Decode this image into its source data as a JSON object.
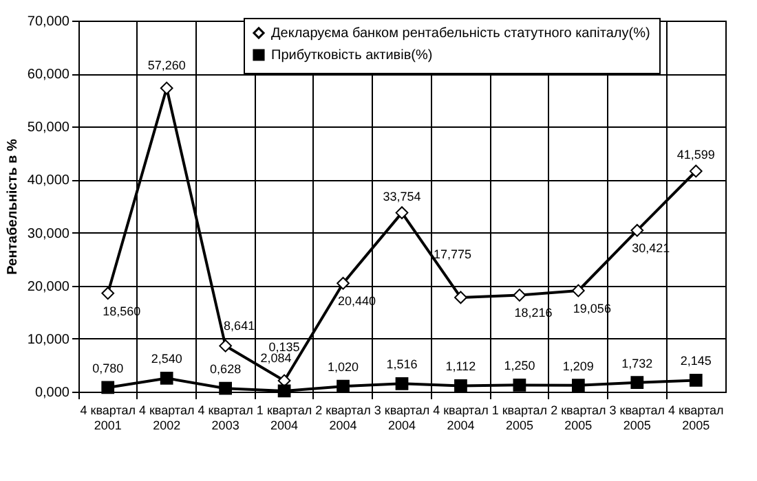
{
  "chart_data": {
    "type": "line",
    "ylabel": "Рентабельність в %",
    "categories": [
      "4 квартал\n2001",
      "4 квартал\n2002",
      "4 квартал\n2003",
      "1 квартал\n2004",
      "2 квартал\n2004",
      "3 квартал\n2004",
      "4 квартал\n2004",
      "1 квартал\n2005",
      "2 квартал\n2005",
      "3 квартал\n2005",
      "4 квартал\n2005"
    ],
    "series": [
      {
        "name": "Декларуєма банком рентабельність статутного капіталу(%)",
        "color": "#000000",
        "marker": "diamond",
        "values": [
          18.56,
          57.26,
          8.641,
          2.084,
          20.44,
          33.754,
          17.775,
          18.216,
          19.056,
          30.421,
          41.599
        ],
        "value_labels": [
          "18,560",
          "57,260",
          "8,641",
          "2,084",
          "20,440",
          "33,754",
          "17,775",
          "18,216",
          "19,056",
          "30,421",
          "41,599"
        ]
      },
      {
        "name": "Прибутковість  активів(%)",
        "color": "#000000",
        "marker": "square",
        "values": [
          0.78,
          2.54,
          0.628,
          0.135,
          1.02,
          1.516,
          1.112,
          1.25,
          1.209,
          1.732,
          2.145
        ],
        "value_labels": [
          "0,780",
          "2,540",
          "0,628",
          "0,135",
          "1,020",
          "1,516",
          "1,112",
          "1,250",
          "1,209",
          "1,732",
          "2,145"
        ]
      }
    ],
    "ylim": [
      0,
      70
    ],
    "yticks": [
      {
        "value": 0,
        "label": "0,000"
      },
      {
        "value": 10,
        "label": "10,000"
      },
      {
        "value": 20,
        "label": "20,000"
      },
      {
        "value": 30,
        "label": "30,000"
      },
      {
        "value": 40,
        "label": "40,000"
      },
      {
        "value": 50,
        "label": "50,000"
      },
      {
        "value": 60,
        "label": "60,000"
      },
      {
        "value": 70,
        "label": "70,000"
      }
    ],
    "grid": true,
    "legend": "top",
    "line_style": "solid"
  }
}
